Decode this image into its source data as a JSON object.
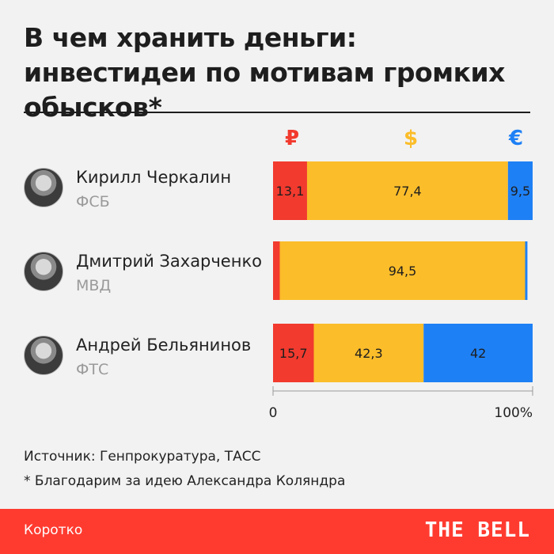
{
  "title": {
    "bold": "В чем хранить деньги:",
    "rest": " инвестидеи по мотивам громких обысков*"
  },
  "currencies": {
    "rub": {
      "symbol": "₽",
      "color": "#f23a2e"
    },
    "usd": {
      "symbol": "$",
      "color": "#fbbd2a"
    },
    "eur": {
      "symbol": "€",
      "color": "#1e80f5"
    }
  },
  "people": [
    {
      "name": "Кирилл Черкалин",
      "org": "ФСБ"
    },
    {
      "name": "Дмитрий Захарченко",
      "org": "МВД"
    },
    {
      "name": "Андрей Бельянинов",
      "org": "ФТС"
    }
  ],
  "chart_data": {
    "type": "bar",
    "orientation": "horizontal",
    "stacked": true,
    "categories": [
      "Кирилл Черкалин",
      "Дмитрий Захарченко",
      "Андрей Бельянинов"
    ],
    "series": [
      {
        "name": "₽",
        "values": [
          13.1,
          2.6,
          15.7
        ],
        "labels": [
          "13,1",
          "",
          "15,7"
        ],
        "color": "#f23a2e"
      },
      {
        "name": "$",
        "values": [
          77.4,
          94.5,
          42.3
        ],
        "labels": [
          "77,4",
          "94,5",
          "42,3"
        ],
        "color": "#fbbd2a"
      },
      {
        "name": "€",
        "values": [
          9.5,
          0.9,
          42
        ],
        "labels": [
          "9,5",
          "",
          "42"
        ],
        "color": "#1e80f5"
      }
    ],
    "xlim": [
      0,
      100
    ],
    "tick_labels": [
      "0",
      "100%"
    ]
  },
  "notes": {
    "source": "Источник: Генпрокуратура, ТАСС",
    "credit": "* Благодарим за идею Александра Коляндра"
  },
  "footer": {
    "left": "Коротко",
    "brand": "THE BELL"
  }
}
